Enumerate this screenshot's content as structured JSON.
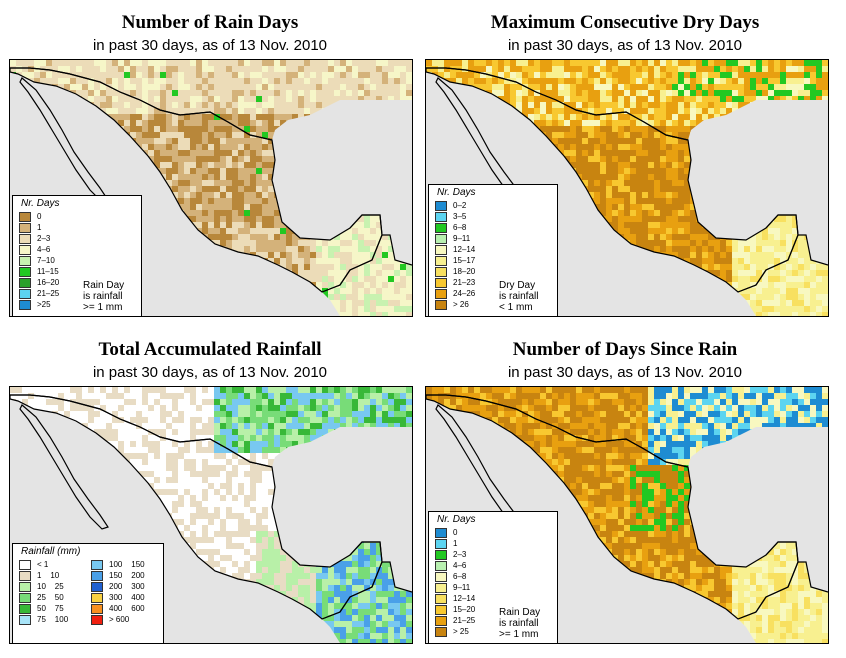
{
  "panels": [
    {
      "title": "Number of Rain Days",
      "subtitle": "in past 30 days, as of  13 Nov. 2010",
      "palette": "raindays",
      "legend": {
        "title": "Nr. Days",
        "items": [
          {
            "label": "0",
            "color": "#b8873a"
          },
          {
            "label": "1",
            "color": "#d4b27a"
          },
          {
            "label": "2–3",
            "color": "#ecdcb8"
          },
          {
            "label": "4–6",
            "color": "#f6f6c8"
          },
          {
            "label": "7–10",
            "color": "#c8f2b0"
          },
          {
            "label": "11–15",
            "color": "#22c822"
          },
          {
            "label": "16–20",
            "color": "#2aa02a"
          },
          {
            "label": "21–25",
            "color": "#5cd4f0"
          },
          {
            "label": ">25",
            "color": "#1e8cd2"
          }
        ]
      },
      "note": [
        "Rain Day",
        "is rainfall",
        ">= 1 mm"
      ]
    },
    {
      "title": "Maximum Consecutive Dry Days",
      "subtitle": "in past 30 days, as of  13 Nov. 2010",
      "palette": "drydays",
      "legend": {
        "title": "Nr. Days",
        "items": [
          {
            "label": "0–2",
            "color": "#1e8cd2"
          },
          {
            "label": "3–5",
            "color": "#5cd4f0"
          },
          {
            "label": "6–8",
            "color": "#22c822"
          },
          {
            "label": "9–11",
            "color": "#b8f0b0"
          },
          {
            "label": "12–14",
            "color": "#f8f8c0"
          },
          {
            "label": "15–17",
            "color": "#f8f090"
          },
          {
            "label": "18–20",
            "color": "#f8e060"
          },
          {
            "label": "21–23",
            "color": "#f8c830"
          },
          {
            "label": "24–26",
            "color": "#e8a010"
          },
          {
            "label": "> 26",
            "color": "#c88410"
          }
        ]
      },
      "note": [
        "Dry Day",
        "is rainfall",
        "< 1 mm"
      ]
    },
    {
      "title": "Total Accumulated Rainfall",
      "subtitle": "in past 30 days, as of  13 Nov. 2010",
      "palette": "rainfall",
      "legend": {
        "title": "Rainfall (mm)",
        "items": [
          {
            "label": "< 1",
            "color": "#ffffff"
          },
          {
            "label": "1    10",
            "color": "#e8dcc4"
          },
          {
            "label": "10    25",
            "color": "#b8f0a8"
          },
          {
            "label": "25    50",
            "color": "#78dc78"
          },
          {
            "label": "50    75",
            "color": "#38b838"
          },
          {
            "label": "75    100",
            "color": "#a8e4f8"
          },
          {
            "label": "100    150",
            "color": "#78c8f0"
          },
          {
            "label": "150    200",
            "color": "#4aa0e8"
          },
          {
            "label": "200    300",
            "color": "#2060d0"
          },
          {
            "label": "300    400",
            "color": "#f8d040"
          },
          {
            "label": "400    600",
            "color": "#f89020"
          },
          {
            "label": "> 600",
            "color": "#f02010"
          }
        ]
      },
      "note": []
    },
    {
      "title": "Number of Days Since Rain",
      "subtitle": "in past 30 days, as of  13 Nov. 2010",
      "palette": "since",
      "legend": {
        "title": "Nr. Days",
        "items": [
          {
            "label": "0",
            "color": "#1e8cd2"
          },
          {
            "label": "1",
            "color": "#5cd4f0"
          },
          {
            "label": "2–3",
            "color": "#22c822"
          },
          {
            "label": "4–6",
            "color": "#b8f0b0"
          },
          {
            "label": "6–8",
            "color": "#f8f8c0"
          },
          {
            "label": "9–11",
            "color": "#f8f090"
          },
          {
            "label": "12–14",
            "color": "#f8e060"
          },
          {
            "label": "15–20",
            "color": "#f8c830"
          },
          {
            "label": "21–25",
            "color": "#e8a010"
          },
          {
            "label": "> 25",
            "color": "#c88410"
          }
        ]
      },
      "note": [
        "Rain Day",
        "is rainfall",
        ">= 1 mm"
      ]
    }
  ],
  "colors": {
    "ocean": "#e4e4e4",
    "border": "#000000"
  }
}
